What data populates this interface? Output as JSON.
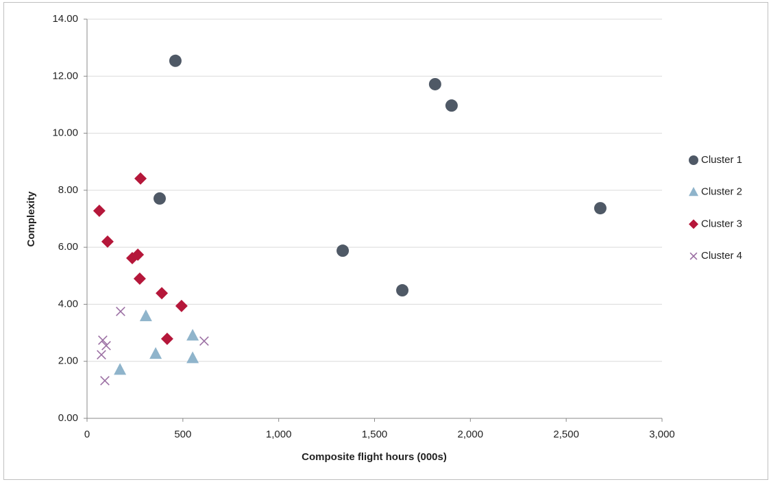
{
  "chart_data": {
    "type": "scatter",
    "x_label": "Composite flight hours (000s)",
    "y_label": "Complexity",
    "xlim": [
      0,
      3000
    ],
    "xticks": [
      0,
      500,
      {
        "value": 1000,
        "label": "1,000"
      },
      {
        "value": 1500,
        "label": "1,500"
      },
      {
        "value": 2000,
        "label": "2,000"
      },
      {
        "value": 2500,
        "label": "2,500"
      },
      {
        "value": 3000,
        "label": "3,000"
      }
    ],
    "ylim": [
      0,
      14
    ],
    "yticks": [
      {
        "value": 0,
        "label": "0.00"
      },
      {
        "value": 2,
        "label": "2.00"
      },
      {
        "value": 4,
        "label": "4.00"
      },
      {
        "value": 6,
        "label": "6.00"
      },
      {
        "value": 8,
        "label": "8.00"
      },
      {
        "value": 10,
        "label": "10.00"
      },
      {
        "value": 12,
        "label": "12.00"
      },
      {
        "value": 14,
        "label": "14.00"
      }
    ],
    "grid": true,
    "legend": "right",
    "series": [
      {
        "name": "Cluster 1",
        "color": "#4f5966",
        "marker": "circle",
        "x": [
          461,
          1816,
          1902,
          2678,
          379,
          1334,
          1645
        ],
        "values": [
          12.54,
          11.72,
          10.97,
          7.37,
          7.71,
          5.88,
          4.49
        ]
      },
      {
        "name": "Cluster 2",
        "color": "#8fb4cb",
        "marker": "triangle",
        "x": [
          307,
          172,
          358,
          551,
          551
        ],
        "values": [
          3.58,
          1.7,
          2.26,
          2.9,
          2.11
        ]
      },
      {
        "name": "Cluster 3",
        "color": "#b5173a",
        "marker": "diamond",
        "x": [
          64,
          279,
          107,
          236,
          265,
          275,
          390,
          493,
          418
        ],
        "values": [
          7.28,
          8.41,
          6.2,
          5.62,
          5.74,
          4.9,
          4.39,
          3.94,
          2.79
        ]
      },
      {
        "name": "Cluster 4",
        "color": "#9b6fa3",
        "marker": "x",
        "x": [
          175,
          82,
          100,
          75,
          93,
          611
        ],
        "values": [
          3.75,
          2.74,
          2.55,
          2.23,
          1.32,
          2.71
        ]
      }
    ]
  }
}
